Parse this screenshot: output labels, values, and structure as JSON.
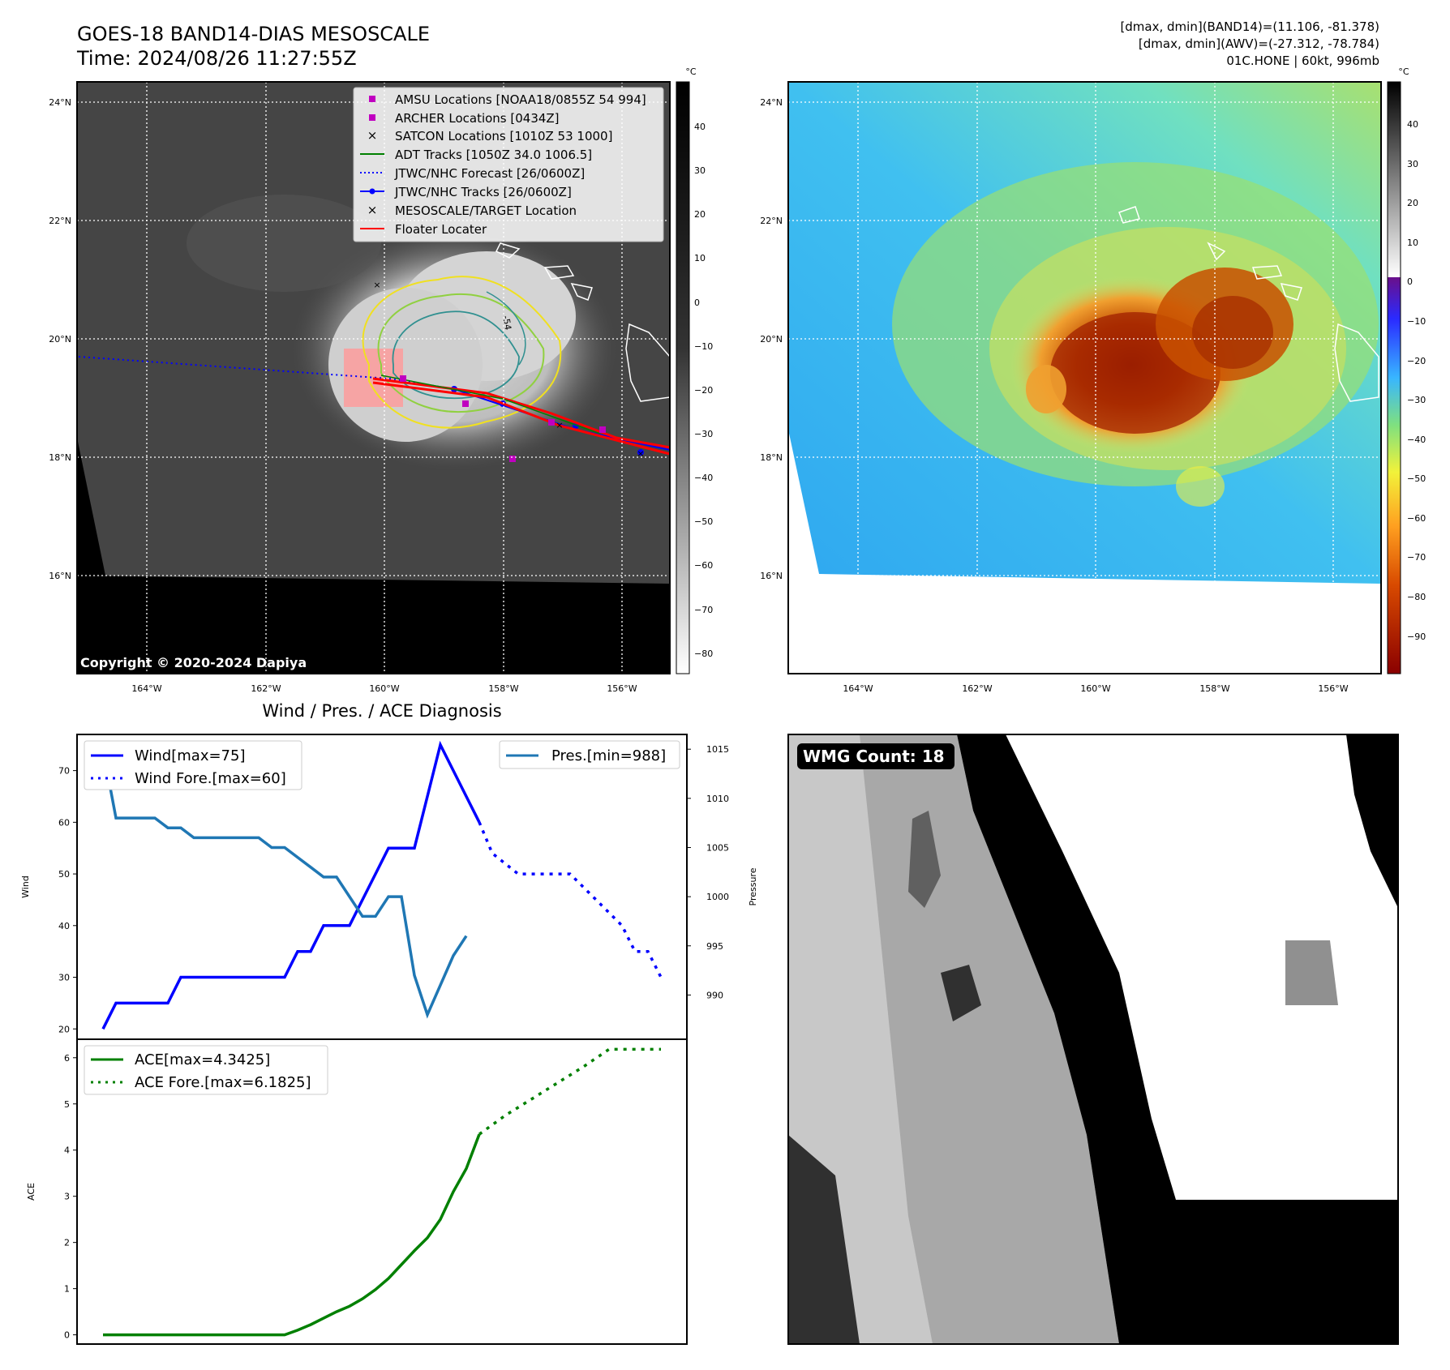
{
  "header": {
    "title_line1": "GOES-18 BAND14-DIAS MESOSCALE",
    "title_line2": "Time: 2024/08/26 11:27:55Z",
    "info_line1": "[dmax, dmin](BAND14)=(11.106, -81.378)",
    "info_line2": "[dmax, dmin](AWV)=(-27.312, -78.784)",
    "info_line3": "01C.HONE | 60kt, 996mb"
  },
  "map_left": {
    "copyright": "Copyright © 2020-2024 Dapiya",
    "lon_labels": [
      "164°W",
      "162°W",
      "160°W",
      "158°W",
      "156°W"
    ],
    "lat_labels": [
      "24°N",
      "22°N",
      "20°N",
      "18°N",
      "16°N"
    ],
    "colorbar_unit": "°C",
    "colorbar_ticks": [
      "40",
      "30",
      "20",
      "10",
      "0",
      "−10",
      "−20",
      "−30",
      "−40",
      "−50",
      "−60",
      "−70",
      "−80"
    ],
    "contour_label": "-54",
    "legend": [
      {
        "label": "AMSU Locations [NOAA18/0855Z 54 994]",
        "marker": "square",
        "color": "#c000c0"
      },
      {
        "label": "ARCHER Locations [0434Z]",
        "marker": "square",
        "color": "#c000c0"
      },
      {
        "label": "SATCON Locations [1010Z 53 1000]",
        "marker": "x",
        "color": "#00b0b0"
      },
      {
        "label": "ADT Tracks [1050Z 34.0 1006.5]",
        "marker": "line",
        "color": "#008000"
      },
      {
        "label": "JTWC/NHC Forecast [26/0600Z]",
        "marker": "dotted",
        "color": "#0000ff"
      },
      {
        "label": "JTWC/NHC Tracks [26/0600Z]",
        "marker": "line-dot",
        "color": "#0000ff"
      },
      {
        "label": "MESOSCALE/TARGET Location",
        "marker": "x",
        "color": "#ff0000"
      },
      {
        "label": "Floater Locater",
        "marker": "line",
        "color": "#ff0000"
      }
    ]
  },
  "map_right": {
    "lon_labels": [
      "164°W",
      "162°W",
      "160°W",
      "158°W",
      "156°W"
    ],
    "lat_labels": [
      "24°N",
      "22°N",
      "20°N",
      "18°N",
      "16°N"
    ],
    "colorbar_unit": "°C",
    "colorbar_ticks": [
      "40",
      "30",
      "20",
      "10",
      "0",
      "−10",
      "−20",
      "−30",
      "−40",
      "−50",
      "−60",
      "−70",
      "−80",
      "−90"
    ]
  },
  "wmg": {
    "label": "WMG Count: 18"
  },
  "chart_data": [
    {
      "type": "line",
      "title": "Wind / Pres. / ACE Diagnosis",
      "ylabel": "Wind",
      "ylabel_right": "Pressure",
      "ylim": [
        18,
        77
      ],
      "ylim_right": [
        985.5,
        1016.5
      ],
      "yticks": [
        20,
        30,
        40,
        50,
        60,
        70
      ],
      "yticks_right": [
        990,
        995,
        1000,
        1005,
        1010,
        1015
      ],
      "legend": [
        "Wind[max=75]",
        "Wind Fore.[max=60]",
        "Pres.[min=988]"
      ],
      "series": [
        {
          "name": "Wind[max=75]",
          "color": "#0000ff",
          "style": "solid",
          "x": [
            0,
            1,
            2,
            3,
            4,
            5,
            6,
            7,
            8,
            9,
            10,
            11,
            12,
            13,
            14,
            15,
            16,
            17,
            18,
            19,
            20,
            21,
            22,
            23,
            24,
            25,
            26,
            27,
            28,
            29
          ],
          "values": [
            20,
            25,
            25,
            25,
            25,
            25,
            30,
            30,
            30,
            30,
            30,
            30,
            30,
            30,
            30,
            35,
            35,
            40,
            40,
            40,
            45,
            50,
            55,
            55,
            55,
            65,
            75,
            70,
            65,
            60
          ]
        },
        {
          "name": "Wind Fore.[max=60]",
          "color": "#0000ff",
          "style": "dotted",
          "x": [
            29,
            30,
            32,
            34,
            36,
            38,
            40,
            41,
            42,
            43
          ],
          "values": [
            60,
            54,
            50,
            50,
            50,
            45,
            40,
            35,
            35,
            30
          ]
        },
        {
          "name": "Pres.[min=988]",
          "color": "#1f77b4",
          "style": "solid",
          "axis": "right",
          "x": [
            0,
            1,
            2,
            3,
            4,
            5,
            6,
            7,
            8,
            9,
            10,
            11,
            12,
            13,
            14,
            15,
            16,
            17,
            18,
            19,
            20,
            21,
            22,
            23,
            24,
            25,
            26,
            27,
            28,
            29
          ],
          "values": [
            1015,
            1008,
            1008,
            1008,
            1008,
            1007,
            1007,
            1006,
            1006,
            1006,
            1006,
            1006,
            1006,
            1005,
            1005,
            1004,
            1003,
            1002,
            1002,
            1000,
            998,
            998,
            1000,
            1000,
            992,
            988,
            991,
            994,
            996,
            null
          ]
        }
      ]
    },
    {
      "type": "line",
      "ylabel": "ACE",
      "ylim": [
        -0.2,
        6.4
      ],
      "yticks": [
        0,
        1,
        2,
        3,
        4,
        5,
        6
      ],
      "legend": [
        "ACE[max=4.3425]",
        "ACE Fore.[max=6.1825]"
      ],
      "series": [
        {
          "name": "ACE[max=4.3425]",
          "color": "#008000",
          "style": "solid",
          "x": [
            0,
            1,
            2,
            3,
            4,
            5,
            6,
            7,
            8,
            9,
            10,
            11,
            12,
            13,
            14,
            15,
            16,
            17,
            18,
            19,
            20,
            21,
            22,
            23,
            24,
            25,
            26,
            27,
            28,
            29
          ],
          "values": [
            0,
            0,
            0,
            0,
            0,
            0,
            0,
            0,
            0,
            0,
            0,
            0,
            0,
            0,
            0,
            0.1,
            0.22,
            0.36,
            0.5,
            0.62,
            0.78,
            0.98,
            1.22,
            1.52,
            1.82,
            2.1,
            2.5,
            3.1,
            3.6,
            4.3425
          ]
        },
        {
          "name": "ACE Fore.[max=6.1825]",
          "color": "#008000",
          "style": "dotted",
          "x": [
            29,
            31,
            33,
            35,
            37,
            39,
            41,
            43
          ],
          "values": [
            4.3425,
            4.75,
            5.1,
            5.45,
            5.8,
            6.1825,
            6.1825,
            6.1825
          ]
        }
      ]
    }
  ]
}
